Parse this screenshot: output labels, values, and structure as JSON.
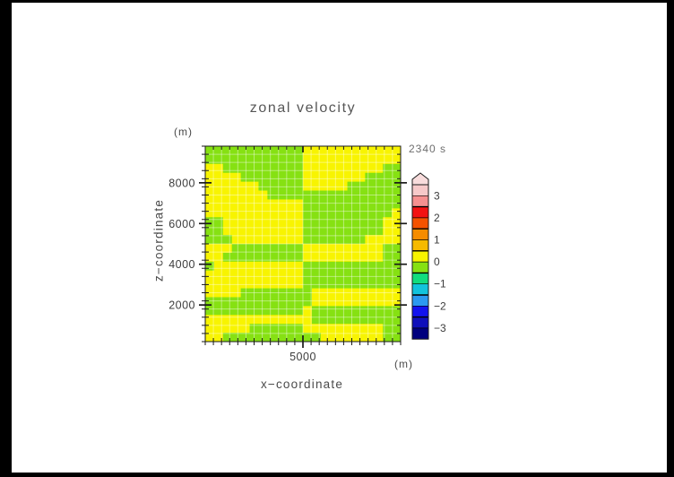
{
  "header": {
    "title": "zonal velocity",
    "timestamp": "2340 s"
  },
  "axes": {
    "y_unit_label": "(m)",
    "x_unit_label": "(m)",
    "x_axis_title": "x−coordinate",
    "y_axis_title": "z−coordinate"
  },
  "chart_data": {
    "type": "heatmap",
    "title": "zonal velocity",
    "time_label": "2340 s",
    "xlabel": "x-coordinate",
    "ylabel": "z-coordinate",
    "units": "m",
    "x_range": [
      200,
      9800
    ],
    "y_range": [
      200,
      9800
    ],
    "x_major_ticks": [
      5000
    ],
    "x_major_tick_labels": [
      "5000"
    ],
    "y_major_ticks": [
      2000,
      4000,
      6000,
      8000
    ],
    "y_major_tick_labels": [
      "2000",
      "4000",
      "6000",
      "8000"
    ],
    "minor_tick_spacing_m": 400,
    "grid_on": true,
    "grid_line_color": "rgba(255,255,255,0.42)",
    "fill_colors": {
      "+": "#f8f400",
      "-": "#86e112"
    },
    "cell_values_legend": {
      "+": "u in (0, 0.5] (yellow)",
      "-": "u in [-0.5, 0) (green)"
    },
    "grid_rows": [
      "-----------+++++++++++",
      "-----------+++++++++++",
      "++---------+++++++++--",
      "++++-------+++++++----",
      "++++++-----+++++------",
      "+++++++---------------",
      "+++++++++++-----------",
      "+++++++++++----------+",
      "--+++++++++---------++",
      "--+++++++++---------++",
      "---++++++++-------++++",
      "+++--------+++++++++--",
      "++---------+++++++++--",
      "-++++++++++-----------",
      "+++++++++++-----------",
      "+++++++++++-----------",
      "++++--------++++++++++",
      "------------++++++++++",
      "-----------+----------",
      "++++++++++++----------",
      "+++++------+++++++++--",
      "++-----------+++++++--"
    ],
    "colorbar": {
      "position": "right",
      "labels_top_to_bottom": [
        "3",
        "2",
        "1",
        "0",
        "−1",
        "−2",
        "−3"
      ],
      "level_step": 0.5,
      "top_level": 3.5,
      "bottom_level": -3.5,
      "cap_color": "#f8dcdc",
      "colors_top_to_bottom": [
        "#f6c9c9",
        "#f59090",
        "#f31212",
        "#f55200",
        "#f68c00",
        "#f6ba00",
        "#f8f400",
        "#86e112",
        "#12dc7e",
        "#12c3dc",
        "#2b99f0",
        "#1212ee",
        "#0f0fba",
        "#00007e"
      ]
    }
  }
}
